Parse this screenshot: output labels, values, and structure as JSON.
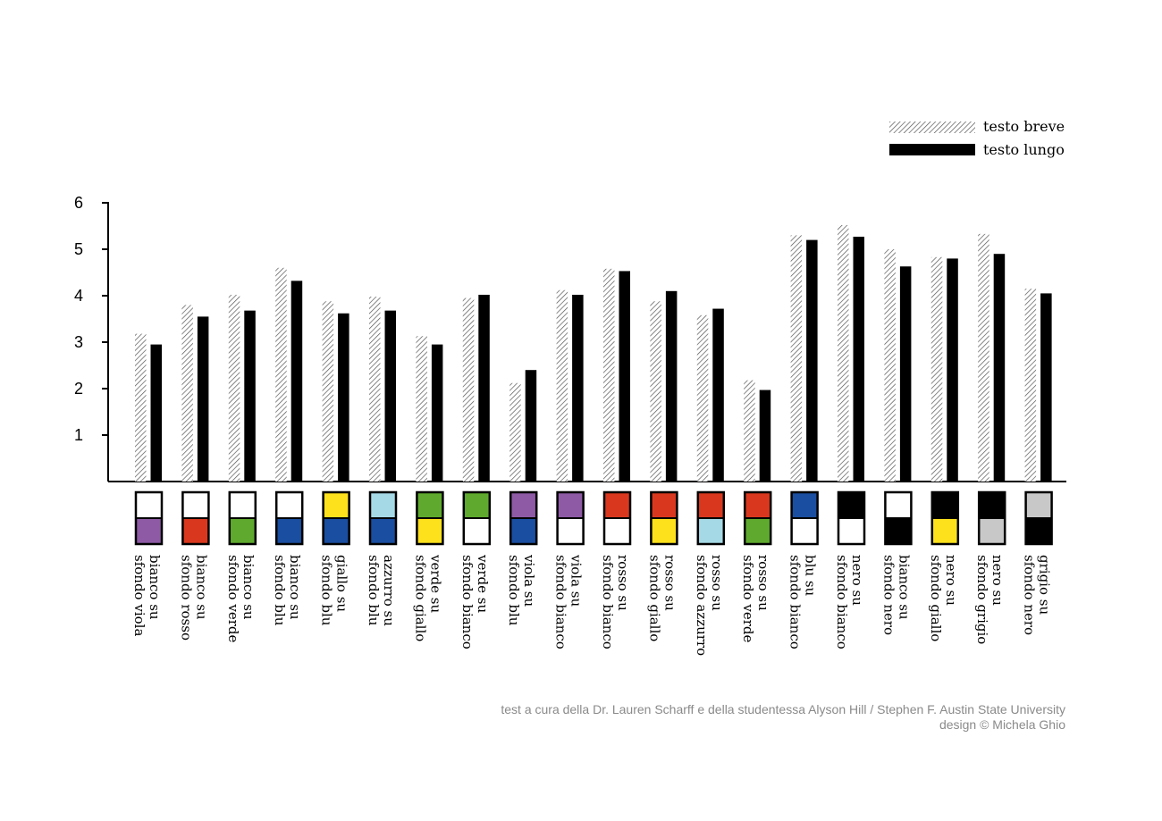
{
  "chart_data": {
    "type": "bar",
    "categories": [
      [
        "bianco su",
        "sfondo viola"
      ],
      [
        "bianco su",
        "sfondo rosso"
      ],
      [
        "bianco su",
        "sfondo verde"
      ],
      [
        "bianco su",
        "sfondo blu"
      ],
      [
        "giallo su",
        "sfondo blu"
      ],
      [
        "azzurro su",
        "sfondo blu"
      ],
      [
        "verde su",
        "sfondo giallo"
      ],
      [
        "verde su",
        "sfondo bianco"
      ],
      [
        "viola su",
        "sfondo blu"
      ],
      [
        "viola su",
        "sfondo bianco"
      ],
      [
        "rosso su",
        "sfondo bianco"
      ],
      [
        "rosso su",
        "sfondo giallo"
      ],
      [
        "rosso su",
        "sfondo azzurro"
      ],
      [
        "rosso su",
        "sfondo verde"
      ],
      [
        "blu su",
        "sfondo bianco"
      ],
      [
        "nero su",
        "sfondo bianco"
      ],
      [
        "bianco su",
        "sfondo nero"
      ],
      [
        "nero su",
        "sfondo giallo"
      ],
      [
        "nero su",
        "sfondo grigio"
      ],
      [
        "grigio su",
        "sfondo nero"
      ]
    ],
    "series": [
      {
        "name": "testo breve",
        "values": [
          3.18,
          3.8,
          4.02,
          4.6,
          3.88,
          3.98,
          3.13,
          3.95,
          2.12,
          4.12,
          4.58,
          3.88,
          3.58,
          2.18,
          5.3,
          5.52,
          5.0,
          4.83,
          5.33,
          4.15
        ]
      },
      {
        "name": "testo lungo",
        "values": [
          2.95,
          3.55,
          3.68,
          4.32,
          3.62,
          3.68,
          2.95,
          4.02,
          2.4,
          4.02,
          4.53,
          4.1,
          3.72,
          1.97,
          5.2,
          5.27,
          4.63,
          4.8,
          4.9,
          4.05
        ]
      }
    ],
    "swatches": [
      [
        "#ffffff",
        "#8e5aa5"
      ],
      [
        "#ffffff",
        "#d9381e"
      ],
      [
        "#ffffff",
        "#5faa2e"
      ],
      [
        "#ffffff",
        "#1a4ea0"
      ],
      [
        "#fce11c",
        "#1a4ea0"
      ],
      [
        "#a5d9e6",
        "#1a4ea0"
      ],
      [
        "#5faa2e",
        "#fce11c"
      ],
      [
        "#5faa2e",
        "#ffffff"
      ],
      [
        "#8e5aa5",
        "#1a4ea0"
      ],
      [
        "#8e5aa5",
        "#ffffff"
      ],
      [
        "#d9381e",
        "#ffffff"
      ],
      [
        "#d9381e",
        "#fce11c"
      ],
      [
        "#d9381e",
        "#a5d9e6"
      ],
      [
        "#d9381e",
        "#5faa2e"
      ],
      [
        "#1a4ea0",
        "#ffffff"
      ],
      [
        "#000000",
        "#ffffff"
      ],
      [
        "#ffffff",
        "#000000"
      ],
      [
        "#000000",
        "#fce11c"
      ],
      [
        "#000000",
        "#c8c8c8"
      ],
      [
        "#c8c8c8",
        "#000000"
      ]
    ],
    "yticks": [
      1,
      2,
      3,
      4,
      5,
      6
    ],
    "ylim": [
      0,
      6
    ],
    "legend_position": "top-right",
    "grid": false
  },
  "credits": {
    "line1": "test a cura della Dr. Lauren Scharff e della studentessa Alyson Hill / Stephen F. Austin State University",
    "line2": "design © Michela Ghio"
  },
  "colors": {
    "hatch": "#555555",
    "solid": "#000000",
    "credit_text": "#8a8a8a"
  }
}
